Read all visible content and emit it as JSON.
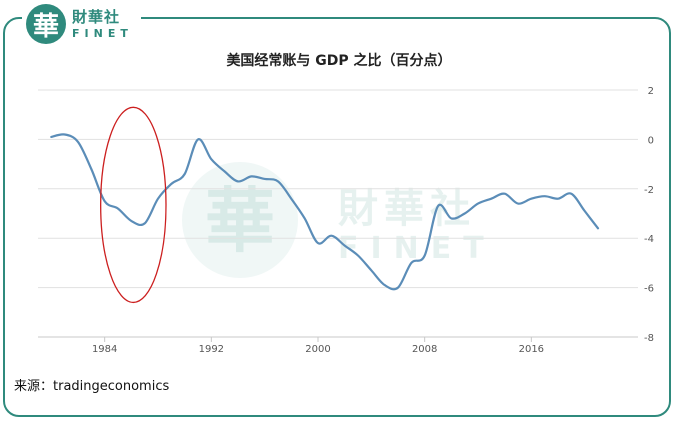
{
  "branding": {
    "logo_char": "華",
    "name_cn": "財華社",
    "name_en": "FINET",
    "watermark_char": "華",
    "watermark_cn": "財華社",
    "watermark_en": "FINET"
  },
  "chart_data": {
    "type": "line",
    "title": "美国经常账与 GDP 之比（百分点）",
    "xlabel": "",
    "ylabel": "",
    "xlim": [
      1979,
      2024
    ],
    "ylim": [
      -8,
      2
    ],
    "x_ticks": [
      1984,
      1992,
      2000,
      2008,
      2016
    ],
    "y_ticks": [
      2,
      0,
      -2,
      -4,
      -6,
      -8
    ],
    "grid": "horizontal",
    "series": [
      {
        "color": "#5b8db8",
        "points": [
          [
            1980,
            0.1
          ],
          [
            1981,
            0.2
          ],
          [
            1982,
            -0.1
          ],
          [
            1983,
            -1.2
          ],
          [
            1984,
            -2.5
          ],
          [
            1985,
            -2.8
          ],
          [
            1986,
            -3.3
          ],
          [
            1987,
            -3.4
          ],
          [
            1988,
            -2.4
          ],
          [
            1989,
            -1.8
          ],
          [
            1990,
            -1.4
          ],
          [
            1991,
            0.0
          ],
          [
            1992,
            -0.8
          ],
          [
            1993,
            -1.3
          ],
          [
            1994,
            -1.7
          ],
          [
            1995,
            -1.5
          ],
          [
            1996,
            -1.6
          ],
          [
            1997,
            -1.7
          ],
          [
            1998,
            -2.4
          ],
          [
            1999,
            -3.2
          ],
          [
            2000,
            -4.2
          ],
          [
            2001,
            -3.9
          ],
          [
            2002,
            -4.3
          ],
          [
            2003,
            -4.7
          ],
          [
            2004,
            -5.3
          ],
          [
            2005,
            -5.9
          ],
          [
            2006,
            -6.0
          ],
          [
            2007,
            -5.0
          ],
          [
            2008,
            -4.7
          ],
          [
            2009,
            -2.7
          ],
          [
            2010,
            -3.2
          ],
          [
            2011,
            -3.0
          ],
          [
            2012,
            -2.6
          ],
          [
            2013,
            -2.4
          ],
          [
            2014,
            -2.2
          ],
          [
            2015,
            -2.6
          ],
          [
            2016,
            -2.4
          ],
          [
            2017,
            -2.3
          ],
          [
            2018,
            -2.4
          ],
          [
            2019,
            -2.2
          ],
          [
            2020,
            -2.9
          ],
          [
            2021,
            -3.6
          ]
        ]
      }
    ],
    "annotation": {
      "type": "ellipse",
      "color": "#cc1f1f",
      "x_range": [
        1983.7,
        1988.6
      ],
      "y_range": [
        -6.6,
        1.3
      ]
    }
  },
  "source_text": "来源：tradingeconomics"
}
